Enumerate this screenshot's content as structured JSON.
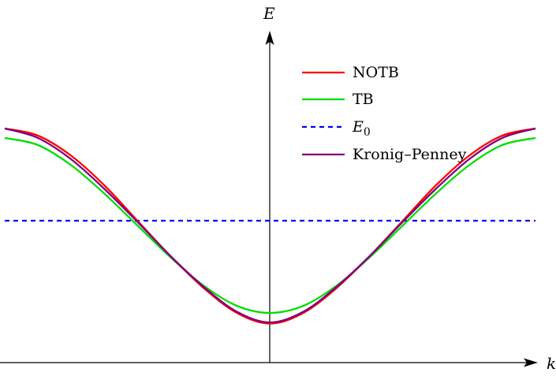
{
  "chart_data": {
    "type": "line",
    "xlabel": "k",
    "ylabel": "E",
    "xlim": [
      -1.0,
      1.0
    ],
    "ylim": [
      0.0,
      2.66
    ],
    "legend_position": "top-right",
    "grid": false,
    "series": [
      {
        "name": "NOTB",
        "color": "#ff0000",
        "dash": "solid",
        "x": [
          -1.0,
          -0.875,
          -0.75,
          -0.625,
          -0.5,
          -0.375,
          -0.25,
          -0.125,
          0.0,
          0.125,
          0.25,
          0.375,
          0.5,
          0.625,
          0.75,
          0.875,
          1.0
        ],
        "y": [
          1.98,
          1.92,
          1.75,
          1.5,
          1.2,
          0.9,
          0.63,
          0.42,
          0.33,
          0.42,
          0.63,
          0.9,
          1.2,
          1.5,
          1.75,
          1.92,
          1.98
        ]
      },
      {
        "name": "TB",
        "color": "#00dd00",
        "dash": "solid",
        "x": [
          -1.0,
          -0.875,
          -0.75,
          -0.625,
          -0.5,
          -0.375,
          -0.25,
          -0.125,
          0.0,
          0.125,
          0.25,
          0.375,
          0.5,
          0.625,
          0.75,
          0.875,
          1.0
        ],
        "y": [
          1.9,
          1.84,
          1.67,
          1.43,
          1.16,
          0.89,
          0.65,
          0.48,
          0.42,
          0.48,
          0.65,
          0.89,
          1.16,
          1.43,
          1.67,
          1.84,
          1.9
        ]
      },
      {
        "name": "Kronig–Penney",
        "color": "#7f007f",
        "dash": "solid",
        "x": [
          -1.0,
          -0.875,
          -0.75,
          -0.625,
          -0.5,
          -0.375,
          -0.25,
          -0.125,
          0.0,
          0.125,
          0.25,
          0.375,
          0.5,
          0.625,
          0.75,
          0.875,
          1.0
        ],
        "y": [
          1.98,
          1.9,
          1.72,
          1.47,
          1.19,
          0.9,
          0.64,
          0.43,
          0.34,
          0.43,
          0.64,
          0.9,
          1.19,
          1.47,
          1.72,
          1.9,
          1.98
        ]
      }
    ],
    "reference_lines": [
      {
        "name": "E",
        "subscript": "0",
        "color": "#0000ff",
        "dash": "dashed",
        "y": 1.2
      }
    ],
    "legend": [
      "NOTB",
      "TB",
      "E0",
      "Kronig–Penney"
    ]
  }
}
